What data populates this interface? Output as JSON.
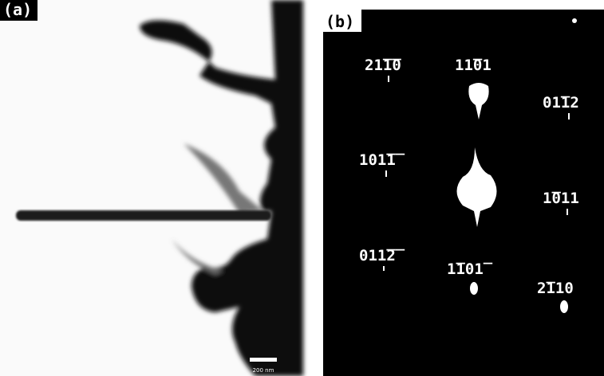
{
  "panel_a": {
    "label": "(a)",
    "scale_bar": "200 nm"
  },
  "panel_b": {
    "label": "(b)",
    "spots": [
      "21̅1̅0",
      "11̅01",
      "01̅12",
      "101̅1̅",
      "1̅011",
      "011̅2̅",
      "1̅101̅",
      "2̅110"
    ]
  }
}
